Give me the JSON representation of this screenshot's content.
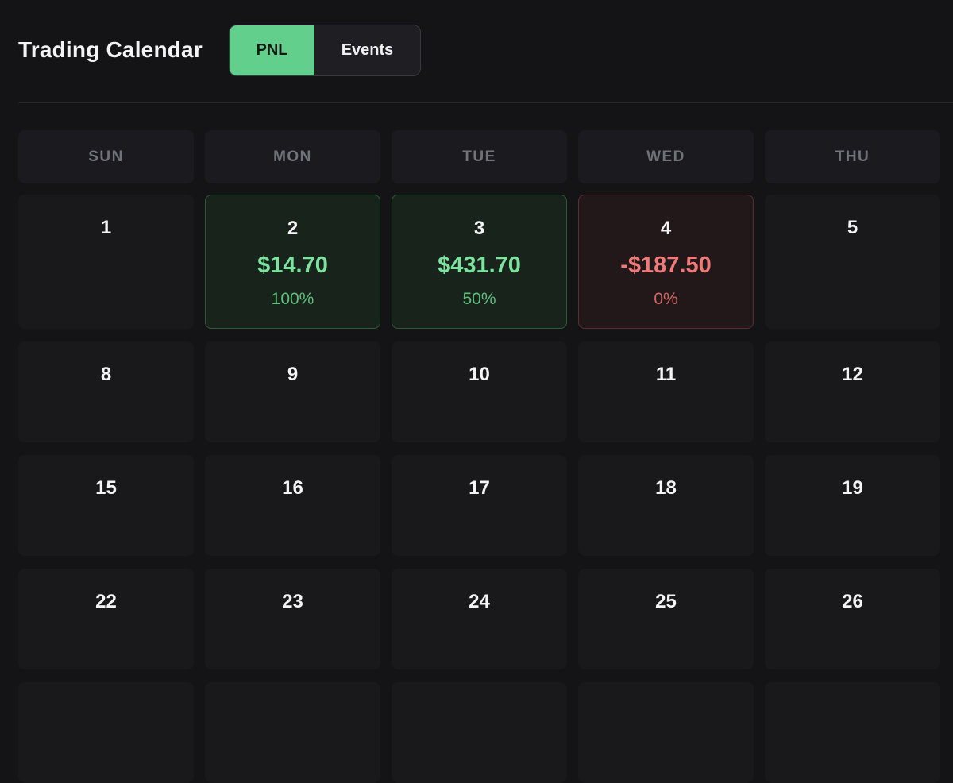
{
  "header": {
    "title": "Trading Calendar",
    "toggle": {
      "options": [
        "PNL",
        "Events"
      ],
      "selected": "PNL"
    }
  },
  "calendar": {
    "weekdays": [
      "SUN",
      "MON",
      "TUE",
      "WED",
      "THU"
    ],
    "weeks": [
      [
        {
          "day": "1"
        },
        {
          "day": "2",
          "pnl": "$14.70",
          "pct": "100%",
          "status": "profit"
        },
        {
          "day": "3",
          "pnl": "$431.70",
          "pct": "50%",
          "status": "profit"
        },
        {
          "day": "4",
          "pnl": "-$187.50",
          "pct": "0%",
          "status": "loss"
        },
        {
          "day": "5"
        }
      ],
      [
        {
          "day": "8"
        },
        {
          "day": "9"
        },
        {
          "day": "10"
        },
        {
          "day": "11"
        },
        {
          "day": "12"
        }
      ],
      [
        {
          "day": "15"
        },
        {
          "day": "16"
        },
        {
          "day": "17"
        },
        {
          "day": "18"
        },
        {
          "day": "19"
        }
      ],
      [
        {
          "day": "22"
        },
        {
          "day": "23"
        },
        {
          "day": "24"
        },
        {
          "day": "25"
        },
        {
          "day": "26"
        }
      ],
      [
        {
          "day": ""
        },
        {
          "day": ""
        },
        {
          "day": ""
        },
        {
          "day": ""
        },
        {
          "day": ""
        }
      ]
    ]
  },
  "colors": {
    "background": "#141417",
    "accent": "#62d08c",
    "profit": "#7ee29f",
    "loss": "#f07a7a"
  }
}
